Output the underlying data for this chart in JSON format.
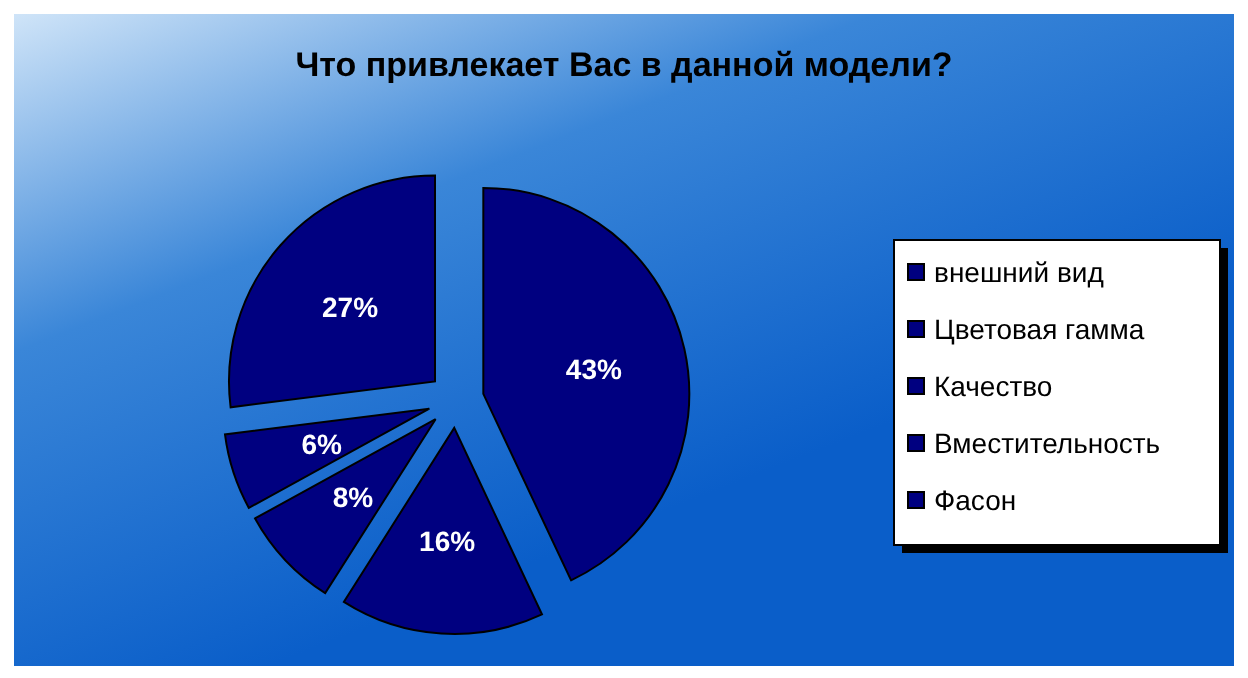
{
  "chart_data": {
    "type": "pie",
    "title": "Что привлекает Вас в данной модели?",
    "categories": [
      "внешний вид",
      "Цветовая гамма",
      "Качество",
      "Вместительность",
      "Фасон"
    ],
    "values": [
      43,
      16,
      8,
      6,
      27
    ],
    "colors": [
      "#000080",
      "#000080",
      "#000080",
      "#000080",
      "#000080"
    ],
    "value_labels": [
      "43%",
      "16%",
      "8%",
      "6%",
      "27%"
    ],
    "legend": "right"
  }
}
